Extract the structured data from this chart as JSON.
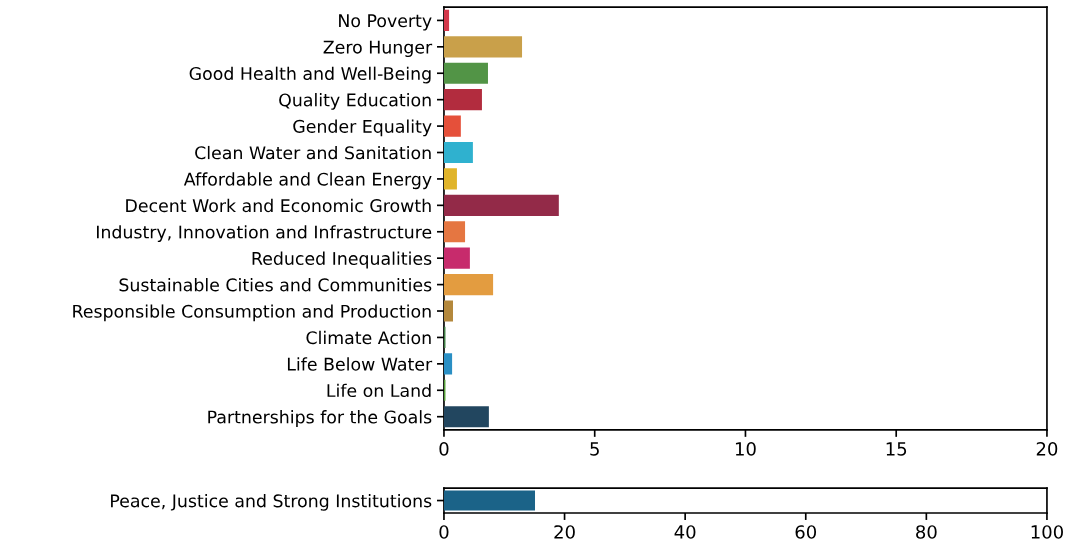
{
  "chart_data": [
    {
      "type": "bar",
      "orientation": "horizontal",
      "categories": [
        "No Poverty",
        "Zero Hunger",
        "Good Health and Well-Being",
        "Quality Education",
        "Gender Equality",
        "Clean Water and Sanitation",
        "Affordable and Clean Energy",
        "Decent Work and Economic Growth",
        "Industry, Innovation and Infrastructure",
        "Reduced Inequalities",
        "Sustainable Cities and Communities",
        "Responsible Consumption and Production",
        "Climate Action",
        "Life Below Water",
        "Life on Land",
        "Partnerships for the Goals"
      ],
      "values": [
        0.17,
        2.59,
        1.46,
        1.26,
        0.56,
        0.96,
        0.43,
        3.81,
        0.7,
        0.86,
        1.63,
        0.3,
        0.05,
        0.27,
        0.05,
        1.49
      ],
      "colors": [
        "#d3374a",
        "#c9a04a",
        "#529446",
        "#b22c3e",
        "#e5503a",
        "#2fb1cf",
        "#e0b42a",
        "#932a48",
        "#e57641",
        "#c72b6c",
        "#e39c40",
        "#b4883c",
        "#3f7e44",
        "#2a8fc4",
        "#56a039",
        "#22465f"
      ],
      "xlim": [
        0,
        20
      ],
      "xticks": [
        0,
        5,
        10,
        15,
        20
      ],
      "grid": false
    },
    {
      "type": "bar",
      "orientation": "horizontal",
      "categories": [
        "Peace, Justice and Strong Institutions"
      ],
      "values": [
        15.1
      ],
      "colors": [
        "#1b6388"
      ],
      "xlim": [
        0,
        100
      ],
      "xticks": [
        0,
        20,
        40,
        60,
        80,
        100
      ],
      "grid": false
    }
  ]
}
